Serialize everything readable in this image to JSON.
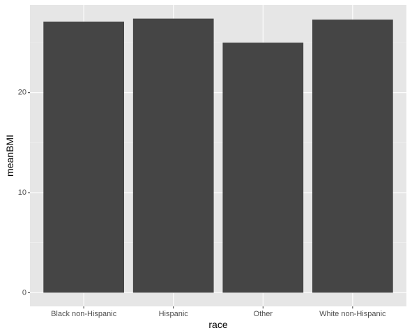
{
  "chart_data": {
    "type": "bar",
    "categories": [
      "Black non-Hispanic",
      "Hispanic",
      "Other",
      "White non-Hispanic"
    ],
    "values": [
      27.1,
      27.4,
      25.0,
      27.3
    ],
    "title": "",
    "xlabel": "race",
    "ylabel": "meanBMI",
    "ylim": [
      -1.37,
      28.77
    ],
    "yticks": [
      0,
      10,
      20
    ],
    "ytick_labels": [
      "0",
      "10",
      "20"
    ],
    "grid": true,
    "colors": {
      "panel": "#e6e6e6",
      "bar": "#454545",
      "gridline": "#ffffff"
    }
  }
}
